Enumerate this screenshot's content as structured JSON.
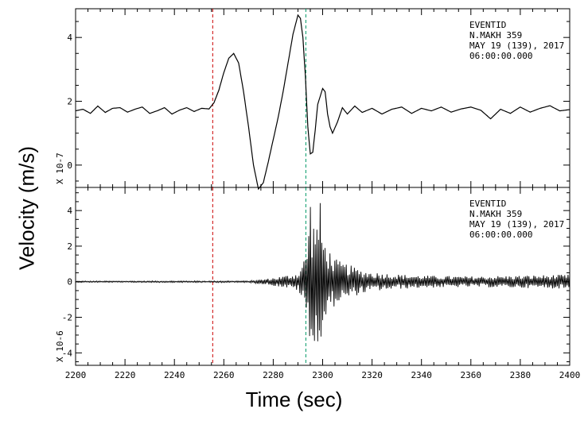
{
  "chart_data": [
    {
      "type": "line",
      "panel": "top",
      "title_lines": [
        "EVENTID",
        "N.MAKH    359",
        "MAY 19 (139), 2017",
        "06:00:00.000"
      ],
      "scale_label": "X 10-7",
      "xlim": [
        2200,
        2400
      ],
      "ylim": [
        -0.7,
        4.9
      ],
      "yticks": [
        0,
        2,
        4
      ],
      "ytick_labels": [
        "0",
        "2",
        "4"
      ],
      "markers": [
        {
          "x": 2255.5,
          "color": "#cc0000"
        },
        {
          "x": 2293.2,
          "color": "#009966"
        }
      ],
      "series": [
        {
          "x": [
            2200,
            2203,
            2206,
            2209,
            2212,
            2215,
            2218,
            2221,
            2224,
            2227,
            2230,
            2233,
            2236,
            2239,
            2242,
            2245,
            2248,
            2251,
            2254,
            2256,
            2258,
            2260,
            2262,
            2264,
            2266,
            2268,
            2270,
            2272,
            2274,
            2276,
            2278,
            2280,
            2282,
            2284,
            2286,
            2288,
            2290,
            2291,
            2292,
            2293,
            2294,
            2295,
            2296,
            2297,
            2298,
            2300,
            2301,
            2302,
            2303,
            2304,
            2306,
            2308,
            2310,
            2313,
            2316,
            2320,
            2324,
            2328,
            2332,
            2336,
            2340,
            2344,
            2348,
            2352,
            2356,
            2360,
            2364,
            2368,
            2372,
            2376,
            2380,
            2384,
            2388,
            2392,
            2396,
            2400
          ],
          "y": [
            1.7,
            1.75,
            1.62,
            1.85,
            1.65,
            1.78,
            1.8,
            1.66,
            1.75,
            1.82,
            1.62,
            1.7,
            1.8,
            1.6,
            1.72,
            1.8,
            1.68,
            1.78,
            1.76,
            1.95,
            2.35,
            2.9,
            3.35,
            3.5,
            3.2,
            2.3,
            1.2,
            0.0,
            -0.75,
            -0.55,
            0.1,
            0.8,
            1.5,
            2.3,
            3.2,
            4.1,
            4.7,
            4.6,
            4.0,
            2.8,
            1.2,
            0.35,
            0.4,
            1.1,
            1.9,
            2.4,
            2.3,
            1.6,
            1.2,
            1.0,
            1.35,
            1.8,
            1.6,
            1.85,
            1.65,
            1.78,
            1.6,
            1.75,
            1.82,
            1.62,
            1.78,
            1.7,
            1.82,
            1.66,
            1.76,
            1.82,
            1.72,
            1.45,
            1.75,
            1.62,
            1.82,
            1.66,
            1.78,
            1.86,
            1.7,
            1.74
          ]
        }
      ]
    },
    {
      "type": "line",
      "panel": "bottom",
      "title_lines": [
        "EVENTID",
        "N.MAKH    359",
        "MAY 19 (139), 2017",
        "06:00:00.000"
      ],
      "scale_label": "X 10-6",
      "xlim": [
        2200,
        2400
      ],
      "ylim": [
        -4.7,
        5.3
      ],
      "yticks": [
        -4,
        -2,
        0,
        2,
        4
      ],
      "ytick_labels": [
        "-4",
        "-2",
        "0",
        "2",
        "4"
      ],
      "xticks": [
        2200,
        2220,
        2240,
        2260,
        2280,
        2300,
        2320,
        2340,
        2360,
        2380,
        2400
      ],
      "xtick_labels": [
        "2200",
        "2220",
        "2240",
        "2260",
        "2280",
        "2300",
        "2320",
        "2340",
        "2360",
        "2380",
        "2400"
      ],
      "markers": [
        {
          "x": 2255.5,
          "color": "#cc0000"
        },
        {
          "x": 2293.2,
          "color": "#009966"
        }
      ],
      "envelope": {
        "x": [
          2200,
          2270,
          2278,
          2285,
          2290,
          2293,
          2294,
          2295,
          2296,
          2297,
          2298,
          2299,
          2300,
          2302,
          2304,
          2306,
          2310,
          2315,
          2320,
          2330,
          2340,
          2360,
          2380,
          2400
        ],
        "amplitude": [
          0.04,
          0.05,
          0.18,
          0.35,
          0.5,
          1.5,
          2.6,
          5.0,
          3.0,
          4.2,
          3.5,
          4.5,
          2.7,
          2.0,
          1.5,
          1.2,
          1.0,
          0.7,
          0.55,
          0.42,
          0.35,
          0.3,
          0.35,
          0.4
        ]
      }
    }
  ],
  "axes": {
    "ylabel": "Velocity (m/s)",
    "xlabel": "Time (sec)"
  }
}
